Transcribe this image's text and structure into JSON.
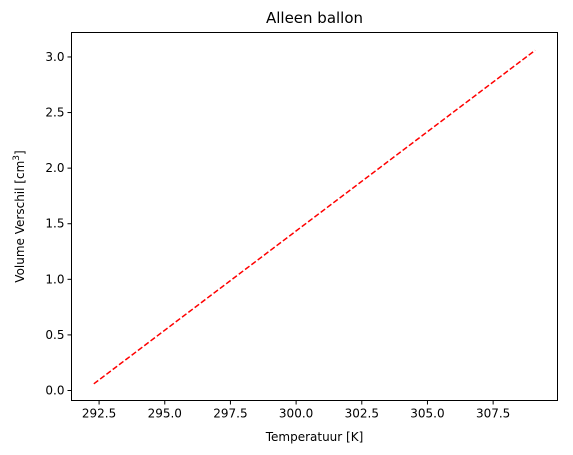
{
  "chart_data": {
    "type": "line",
    "title": "Alleen ballon",
    "xlabel": "Temperatuur [K]",
    "ylabel_main": "Volume Verschil [cm",
    "ylabel_sup": "3",
    "ylabel_end": "]",
    "xlim": [
      291.45,
      309.95
    ],
    "ylim": [
      -0.09,
      3.22
    ],
    "x_ticks": [
      292.5,
      295.0,
      297.5,
      300.0,
      302.5,
      305.0,
      307.5
    ],
    "x_tick_labels": [
      "292.5",
      "295.0",
      "297.5",
      "300.0",
      "302.5",
      "305.0",
      "307.5"
    ],
    "y_ticks": [
      0.0,
      0.5,
      1.0,
      1.5,
      2.0,
      2.5,
      3.0
    ],
    "y_tick_labels": [
      "0.0",
      "0.5",
      "1.0",
      "1.5",
      "2.0",
      "2.5",
      "3.0"
    ],
    "grid": false,
    "series": [
      {
        "color": "#ff0000",
        "linestyle": "dashed",
        "x": [
          292.3,
          309.1
        ],
        "y": [
          0.06,
          3.06
        ]
      }
    ]
  }
}
